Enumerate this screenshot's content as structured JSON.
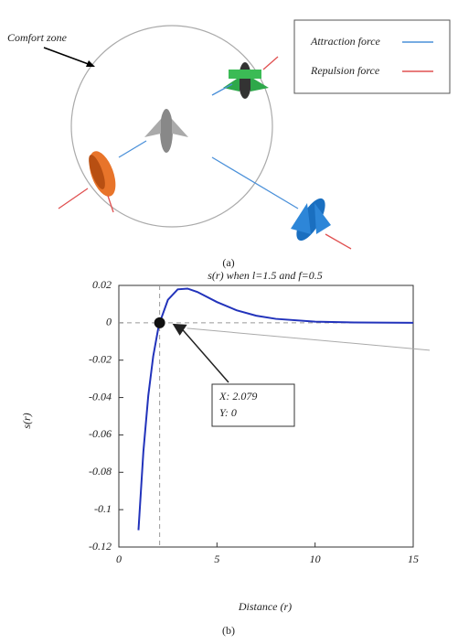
{
  "figure_a": {
    "zone_label": "Comfort zone",
    "legend": [
      "Attraction force",
      "Repulsion force"
    ],
    "caption": "(a)"
  },
  "chart_data": {
    "type": "line",
    "title": "s(r) when l=1.5 and f=0.5",
    "x_label": "Distance (r)",
    "y_label": "s(r)",
    "x": [
      1,
      1.25,
      1.5,
      1.75,
      2,
      2.079,
      2.5,
      3,
      3.5,
      4,
      5,
      6,
      7,
      8,
      10,
      12,
      15
    ],
    "series": [
      {
        "name": "s(r)",
        "color": "#2233bb",
        "values": [
          -0.111,
          -0.069,
          -0.039,
          -0.018,
          -0.0035,
          0,
          0.0123,
          0.0179,
          0.0183,
          0.0165,
          0.0111,
          0.0067,
          0.0038,
          0.0021,
          0.0006,
          0.0002,
          0
        ]
      }
    ],
    "xlim": [
      0,
      15
    ],
    "xticks": [
      0,
      5,
      10,
      15
    ],
    "ylim": [
      -0.12,
      0.02
    ],
    "yticks": [
      0.02,
      0,
      -0.02,
      -0.04,
      -0.06,
      -0.08,
      -0.1,
      -0.12
    ],
    "annotation": {
      "point": [
        2.079,
        0
      ],
      "lines": [
        "X: 2.079",
        "Y: 0"
      ]
    },
    "caption": "(b)"
  }
}
